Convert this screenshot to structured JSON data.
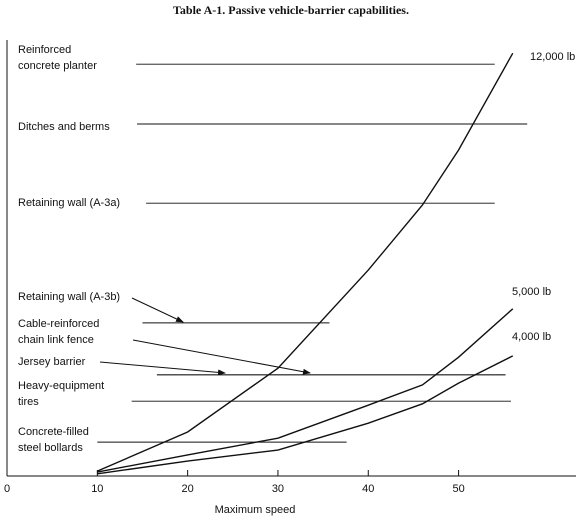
{
  "chart_data": {
    "type": "line",
    "title": "Table A-1.  Passive vehicle-barrier capabilities.",
    "x_label": "Maximum speed",
    "x": [
      10,
      20,
      30,
      40,
      46,
      50,
      56
    ],
    "series": [
      {
        "name": "12,000 lb",
        "color": "#111111",
        "values": [
          1.1,
          10,
          24.5,
          46.8,
          61.6,
          74.1,
          96.1
        ]
      },
      {
        "name": "5,000 lb",
        "color": "#111111",
        "values": [
          0.9,
          4.8,
          8.6,
          16.1,
          20.7,
          27,
          38
        ]
      },
      {
        "name": "4,000 lb",
        "color": "#111111",
        "values": [
          0.5,
          3.4,
          5.9,
          12,
          16.4,
          21.1,
          27.3
        ]
      }
    ],
    "barriers": [
      {
        "label": [
          "Reinforced",
          "concrete  planter"
        ],
        "value": 93.6,
        "x": [
          14.3,
          54
        ]
      },
      {
        "label": [
          "Ditches and berms"
        ],
        "value": 80,
        "x": [
          14.4,
          57.6
        ]
      },
      {
        "label": [
          "Retaining wall (A-3a)"
        ],
        "value": 62,
        "x": [
          15.4,
          54
        ]
      },
      {
        "label": [
          "Retaining wall (A-3b)"
        ],
        "value": 34.8,
        "x": [
          15,
          35.7
        ]
      },
      {
        "label": [
          "Cable-reinforced",
          "chain link fence"
        ],
        "value": 23,
        "x": [
          16.6,
          55.2
        ]
      },
      {
        "label": [
          "Jersey barrier"
        ],
        "value": 23,
        "x": [
          16.6,
          55.2
        ]
      },
      {
        "label": [
          "Heavy-equipment",
          "tires"
        ],
        "value": 17,
        "x": [
          13.8,
          55.8
        ]
      },
      {
        "label": [
          "Concrete-filled",
          "steel bollards"
        ],
        "value": 7.7,
        "x": [
          10,
          37.6
        ]
      }
    ],
    "xlim": [
      0,
      63
    ],
    "ylim": [
      0,
      100
    ],
    "xticks": [
      0,
      10,
      20,
      30,
      40,
      50
    ]
  }
}
